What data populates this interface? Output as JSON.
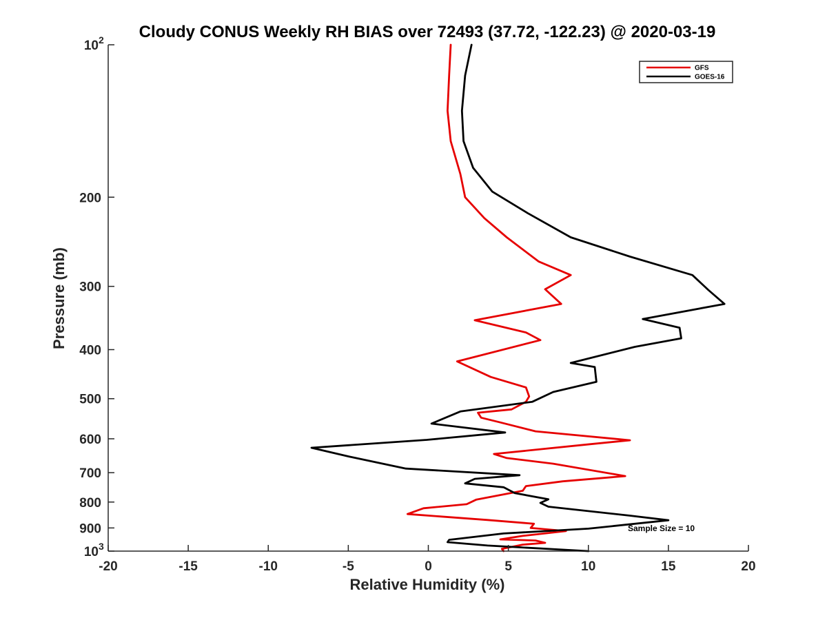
{
  "chart_data": {
    "type": "line",
    "title": "Cloudy CONUS Weekly RH BIAS over 72493 (37.72, -122.23) @ 2020-03-19",
    "xlabel": "Relative Humidity (%)",
    "ylabel": "Pressure (mb)",
    "xlim": [
      -20,
      20
    ],
    "ylim": [
      100,
      1000
    ],
    "y_scale": "log",
    "y_reversed": true,
    "x_ticks": [
      -20,
      -15,
      -10,
      -5,
      0,
      5,
      10,
      15,
      20
    ],
    "x_tick_labels": [
      "-20",
      "-15",
      "-10",
      "-5",
      "0",
      "5",
      "10",
      "15",
      "20"
    ],
    "y_ticks": [
      {
        "value": 100,
        "label": "10",
        "sup": "2"
      },
      {
        "value": 200,
        "label": "200",
        "sup": ""
      },
      {
        "value": 300,
        "label": "300",
        "sup": ""
      },
      {
        "value": 400,
        "label": "400",
        "sup": ""
      },
      {
        "value": 500,
        "label": "500",
        "sup": ""
      },
      {
        "value": 600,
        "label": "600",
        "sup": ""
      },
      {
        "value": 700,
        "label": "700",
        "sup": ""
      },
      {
        "value": 800,
        "label": "800",
        "sup": ""
      },
      {
        "value": 900,
        "label": "900",
        "sup": ""
      },
      {
        "value": 1000,
        "label": "10",
        "sup": "3"
      }
    ],
    "grid": false,
    "legend_position": "top-right",
    "annotation": "Sample Size = 10",
    "series": [
      {
        "name": "GFS",
        "color": "#e60000",
        "points": [
          [
            1.4,
            100
          ],
          [
            1.3,
            115
          ],
          [
            1.2,
            135
          ],
          [
            1.4,
            155
          ],
          [
            2.0,
            180
          ],
          [
            2.3,
            200
          ],
          [
            3.5,
            220
          ],
          [
            4.9,
            240
          ],
          [
            6.9,
            268
          ],
          [
            8.9,
            285
          ],
          [
            7.3,
            304
          ],
          [
            8.3,
            325
          ],
          [
            2.9,
            350
          ],
          [
            6.1,
            370
          ],
          [
            7.0,
            383
          ],
          [
            1.8,
            422
          ],
          [
            3.9,
            453
          ],
          [
            6.1,
            475
          ],
          [
            6.3,
            495
          ],
          [
            6.1,
            507
          ],
          [
            5.2,
            525
          ],
          [
            3.1,
            533
          ],
          [
            3.3,
            545
          ],
          [
            4.5,
            557
          ],
          [
            6.7,
            580
          ],
          [
            12.6,
            604
          ],
          [
            10.1,
            615
          ],
          [
            4.1,
            643
          ],
          [
            4.9,
            655
          ],
          [
            7.8,
            672
          ],
          [
            12.3,
            711
          ],
          [
            8.4,
            728
          ],
          [
            6.1,
            744
          ],
          [
            5.9,
            760
          ],
          [
            3.0,
            791
          ],
          [
            2.4,
            808
          ],
          [
            -0.3,
            823
          ],
          [
            -1.3,
            845
          ],
          [
            3.7,
            868
          ],
          [
            6.6,
            883
          ],
          [
            6.4,
            900
          ],
          [
            8.6,
            913
          ],
          [
            5.9,
            933
          ],
          [
            4.5,
            948
          ],
          [
            6.7,
            953
          ],
          [
            7.3,
            963
          ],
          [
            5.9,
            971
          ],
          [
            4.6,
            990
          ],
          [
            4.7,
            1000
          ]
        ]
      },
      {
        "name": "GOES-16",
        "color": "#000000",
        "points": [
          [
            2.7,
            100
          ],
          [
            2.3,
            115
          ],
          [
            2.1,
            135
          ],
          [
            2.2,
            155
          ],
          [
            2.8,
            175
          ],
          [
            4.0,
            195
          ],
          [
            6.2,
            215
          ],
          [
            8.9,
            240
          ],
          [
            12.6,
            262
          ],
          [
            16.5,
            285
          ],
          [
            17.5,
            305
          ],
          [
            18.5,
            325
          ],
          [
            13.4,
            348
          ],
          [
            15.7,
            362
          ],
          [
            15.8,
            380
          ],
          [
            12.9,
            395
          ],
          [
            8.9,
            425
          ],
          [
            10.4,
            433
          ],
          [
            10.5,
            463
          ],
          [
            7.8,
            485
          ],
          [
            6.5,
            507
          ],
          [
            2.0,
            530
          ],
          [
            0.2,
            560
          ],
          [
            4.8,
            583
          ],
          [
            -0.1,
            603
          ],
          [
            -7.3,
            625
          ],
          [
            -5.0,
            650
          ],
          [
            -1.4,
            687
          ],
          [
            5.7,
            708
          ],
          [
            2.9,
            720
          ],
          [
            2.3,
            735
          ],
          [
            4.7,
            748
          ],
          [
            5.4,
            768
          ],
          [
            7.5,
            790
          ],
          [
            7.0,
            803
          ],
          [
            7.5,
            817
          ],
          [
            12.6,
            851
          ],
          [
            15.0,
            869
          ],
          [
            10.0,
            903
          ],
          [
            4.7,
            923
          ],
          [
            1.3,
            950
          ],
          [
            1.2,
            960
          ],
          [
            3.7,
            975
          ],
          [
            10.0,
            1000
          ]
        ]
      }
    ]
  }
}
